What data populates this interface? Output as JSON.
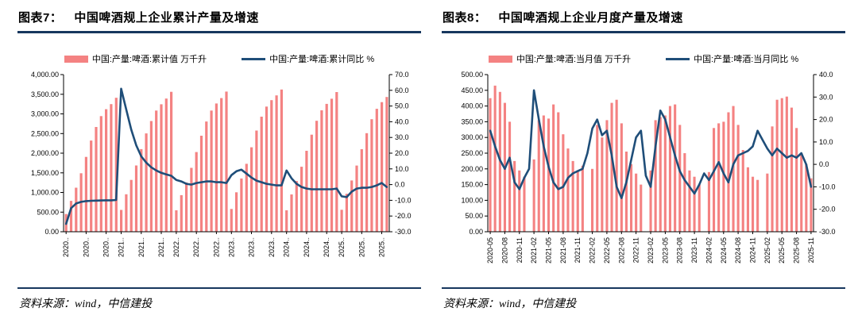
{
  "colors": {
    "bar": "#F48282",
    "line": "#1F4E79",
    "rule": "#17375E",
    "axis": "#000000"
  },
  "figures": [
    {
      "label": "图表7：",
      "title": "中国啤酒规上企业累计产量及增速",
      "source": "资料来源：wind，中信建投"
    },
    {
      "label": "图表8：",
      "title": "中国啤酒规上企业月度产量及增速",
      "source": "资料来源：wind，中信建投"
    }
  ],
  "chart_data": [
    {
      "type": "combo-bar-line",
      "title": "中国啤酒规上企业累计产量及增速",
      "legend_position": "top-center",
      "grid": false,
      "x": [
        "2020-02",
        "2020-03",
        "2020-04",
        "2020-05",
        "2020-06",
        "2020-07",
        "2020-08",
        "2020-09",
        "2020-10",
        "2020-11",
        "2020-12",
        "2021-02",
        "2021-03",
        "2021-04",
        "2021-05",
        "2021-06",
        "2021-07",
        "2021-08",
        "2021-09",
        "2021-10",
        "2021-11",
        "2021-12",
        "2022-02",
        "2022-03",
        "2022-04",
        "2022-05",
        "2022-06",
        "2022-07",
        "2022-08",
        "2022-09",
        "2022-10",
        "2022-11",
        "2022-12",
        "2023-02",
        "2023-03",
        "2023-04",
        "2023-05",
        "2023-06",
        "2023-07",
        "2023-08",
        "2023-09",
        "2023-10",
        "2023-11",
        "2023-12",
        "2024-02",
        "2024-03",
        "2024-04",
        "2024-05",
        "2024-06",
        "2024-07",
        "2024-08",
        "2024-09",
        "2024-10",
        "2024-11",
        "2024-12",
        "2025-02",
        "2025-03",
        "2025-04",
        "2025-05",
        "2025-06",
        "2025-07",
        "2025-08",
        "2025-09",
        "2025-10",
        "2025-11"
      ],
      "x_ticks": [
        {
          "i": 0,
          "label": "2020.."
        },
        {
          "i": 4,
          "label": "2020.."
        },
        {
          "i": 8,
          "label": "2020.."
        },
        {
          "i": 11,
          "label": "2021.."
        },
        {
          "i": 15,
          "label": "2021.."
        },
        {
          "i": 19,
          "label": "2021.."
        },
        {
          "i": 22,
          "label": "2022.."
        },
        {
          "i": 26,
          "label": "2022.."
        },
        {
          "i": 30,
          "label": "2022.."
        },
        {
          "i": 33,
          "label": "2023.."
        },
        {
          "i": 37,
          "label": "2023.."
        },
        {
          "i": 41,
          "label": "2023.."
        },
        {
          "i": 44,
          "label": "2024.."
        },
        {
          "i": 48,
          "label": "2024.."
        },
        {
          "i": 52,
          "label": "2024.."
        },
        {
          "i": 55,
          "label": "2025.."
        },
        {
          "i": 59,
          "label": "2025.."
        },
        {
          "i": 63,
          "label": "2025.."
        }
      ],
      "left_axis": {
        "min": 0,
        "max": 4000,
        "step": 500,
        "ticks": [
          "4,000.00",
          "3,500.00",
          "3,000.00",
          "2,500.00",
          "2,000.00",
          "1,500.00",
          "1,000.00",
          "500.00",
          "0.00"
        ]
      },
      "right_axis": {
        "min": -30,
        "max": 70,
        "step": 10,
        "ticks": [
          "70.0",
          "60.0",
          "50.0",
          "40.0",
          "30.0",
          "20.0",
          "10.0",
          "0.0",
          "-10.0",
          "-20.0",
          "-30.0"
        ]
      },
      "series": [
        {
          "name": "中国:产量:啤酒:累计值 万千升",
          "type": "bar",
          "axis": "left",
          "values": [
            451,
            785,
            1122,
            1489,
            1905,
            2321,
            2667,
            2943,
            3119,
            3248,
            3411,
            556,
            954,
            1320,
            1687,
            2103,
            2503,
            2818,
            3085,
            3245,
            3390,
            3562,
            546,
            931,
            1254,
            1626,
            2029,
            2444,
            2807,
            3085,
            3264,
            3402,
            3568,
            580,
            1005,
            1355,
            1730,
            2150,
            2575,
            2930,
            3185,
            3350,
            3470,
            3620,
            545,
            950,
            1290,
            1655,
            2060,
            2470,
            2825,
            3090,
            3255,
            3385,
            3555,
            560,
            965,
            1305,
            1685,
            2100,
            2510,
            2865,
            3130,
            3300,
            3430
          ]
        },
        {
          "name": "中国:产量:啤酒:累计同比 %",
          "type": "line",
          "axis": "right",
          "values": [
            -25,
            -15,
            -12,
            -11,
            -10.5,
            -10.3,
            -10.2,
            -10.1,
            -10,
            -10,
            -9.8,
            61,
            48,
            35,
            25,
            18,
            14,
            11,
            9,
            7.5,
            6.5,
            5.6,
            3,
            2,
            0.5,
            0,
            1,
            1.5,
            2,
            2,
            1.5,
            1.5,
            1,
            6,
            8.5,
            9.5,
            7,
            4.5,
            2.5,
            1.5,
            0.5,
            0,
            -0.5,
            -0.5,
            9,
            4,
            0.5,
            -1.5,
            -2.5,
            -3,
            -3,
            -3,
            -3,
            -3,
            -2.5,
            -7.5,
            -8,
            -4.5,
            -2.5,
            -2,
            -2,
            -1.5,
            -0.5,
            1,
            -1.5
          ]
        }
      ]
    },
    {
      "type": "combo-bar-line",
      "title": "中国啤酒规上企业月度产量及增速",
      "legend_position": "top-center",
      "grid": false,
      "x": [
        "2020-05",
        "2020-06",
        "2020-07",
        "2020-08",
        "2020-09",
        "2020-10",
        "2020-11",
        "2020-12",
        "2021-01",
        "2021-02",
        "2021-03",
        "2021-04",
        "2021-05",
        "2021-06",
        "2021-07",
        "2021-08",
        "2021-09",
        "2021-10",
        "2021-11",
        "2021-12",
        "2022-01",
        "2022-02",
        "2022-03",
        "2022-04",
        "2022-05",
        "2022-06",
        "2022-07",
        "2022-08",
        "2022-09",
        "2022-10",
        "2022-11",
        "2022-12",
        "2023-01",
        "2023-02",
        "2023-03",
        "2023-04",
        "2023-05",
        "2023-06",
        "2023-07",
        "2023-08",
        "2023-09",
        "2023-10",
        "2023-11",
        "2023-12",
        "2024-01",
        "2024-02",
        "2024-03",
        "2024-04",
        "2024-05",
        "2024-06",
        "2024-07",
        "2024-08",
        "2024-09",
        "2024-10",
        "2024-11",
        "2024-12",
        "2025-01",
        "2025-02",
        "2025-03",
        "2025-04",
        "2025-05",
        "2025-06",
        "2025-07",
        "2025-08",
        "2025-09",
        "2025-10",
        "2025-11"
      ],
      "x_ticks": [
        {
          "i": 0,
          "label": "2020-05"
        },
        {
          "i": 3,
          "label": "2020-08"
        },
        {
          "i": 6,
          "label": "2020-11"
        },
        {
          "i": 9,
          "label": "2021-02"
        },
        {
          "i": 12,
          "label": "2021-05"
        },
        {
          "i": 15,
          "label": "2021-08"
        },
        {
          "i": 18,
          "label": "2021-11"
        },
        {
          "i": 21,
          "label": "2022-02"
        },
        {
          "i": 24,
          "label": "2022-05"
        },
        {
          "i": 27,
          "label": "2022-08"
        },
        {
          "i": 30,
          "label": "2022-11"
        },
        {
          "i": 33,
          "label": "2023-02"
        },
        {
          "i": 36,
          "label": "2023-05"
        },
        {
          "i": 39,
          "label": "2023-08"
        },
        {
          "i": 42,
          "label": "2023-11"
        },
        {
          "i": 45,
          "label": "2024-02"
        },
        {
          "i": 48,
          "label": "2024-05"
        },
        {
          "i": 51,
          "label": "2024-08"
        },
        {
          "i": 54,
          "label": "2024-11"
        },
        {
          "i": 57,
          "label": "2025-02"
        },
        {
          "i": 60,
          "label": "2025-05"
        },
        {
          "i": 63,
          "label": "2025-08"
        },
        {
          "i": 66,
          "label": "2025-11"
        }
      ],
      "left_axis": {
        "min": 0,
        "max": 500,
        "step": 50,
        "ticks": [
          "500.00",
          "450.00",
          "400.00",
          "350.00",
          "300.00",
          "250.00",
          "200.00",
          "150.00",
          "100.00",
          "50.00",
          "0.00"
        ]
      },
      "right_axis": {
        "min": -30,
        "max": 40,
        "step": 10,
        "ticks": [
          "40.0",
          "30.0",
          "20.0",
          "10.0",
          "0.0",
          "-10.0",
          "-20.0",
          "-30.0"
        ]
      },
      "series": [
        {
          "name": "中国:产量:啤酒:当月值 万千升",
          "type": "bar",
          "axis": "left",
          "values": [
            425,
            465,
            445,
            410,
            350,
            225,
            195,
            175,
            null,
            230,
            355,
            370,
            360,
            405,
            380,
            310,
            265,
            225,
            195,
            210,
            null,
            200,
            340,
            300,
            355,
            410,
            420,
            345,
            255,
            215,
            185,
            150,
            null,
            195,
            355,
            365,
            370,
            400,
            405,
            340,
            250,
            195,
            175,
            150,
            null,
            190,
            330,
            345,
            350,
            380,
            400,
            340,
            260,
            205,
            175,
            165,
            null,
            185,
            335,
            420,
            425,
            430,
            395,
            330,
            250,
            215,
            170
          ]
        },
        {
          "name": "中国:产量:啤酒:当月同比 %",
          "type": "line",
          "axis": "right",
          "values": [
            15,
            8,
            2,
            -2,
            3,
            -8,
            -11,
            -6,
            -2,
            33,
            20,
            8,
            -1,
            -8,
            -11,
            -10,
            -6,
            -4,
            -3,
            -2,
            5,
            16,
            20,
            13,
            15,
            4,
            -10,
            -15,
            -8,
            2,
            12,
            15,
            -5,
            -10,
            8,
            24,
            20,
            12,
            4,
            -3,
            -7,
            -10,
            -13,
            -9,
            -4,
            -7,
            -3,
            1,
            -4,
            -8,
            0,
            4,
            5,
            6,
            8,
            15,
            11,
            7,
            4,
            7,
            5,
            3,
            4,
            3,
            5,
            0,
            -10
          ]
        }
      ]
    }
  ]
}
